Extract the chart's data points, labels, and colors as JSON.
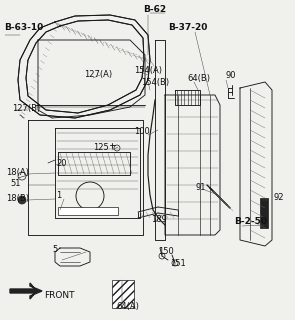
{
  "bg_color": "#f0f0ec",
  "line_color": "#1a1a1a",
  "lw": 0.65,
  "labels": {
    "B-62": [
      143,
      10,
      true
    ],
    "B-63-10": [
      4,
      28,
      true
    ],
    "B-37-20": [
      168,
      28,
      true
    ],
    "B-2-50": [
      234,
      222,
      true
    ],
    "127(A)": [
      84,
      75,
      false
    ],
    "127(B)": [
      12,
      108,
      false
    ],
    "154(A)": [
      134,
      70,
      false
    ],
    "154(B)": [
      141,
      82,
      false
    ],
    "64(B)": [
      187,
      78,
      false
    ],
    "90": [
      225,
      76,
      false
    ],
    "100": [
      134,
      132,
      false
    ],
    "125": [
      93,
      148,
      false
    ],
    "18(A)": [
      6,
      173,
      false
    ],
    "20": [
      56,
      163,
      false
    ],
    "51": [
      10,
      184,
      false
    ],
    "18(B)": [
      6,
      198,
      false
    ],
    "1": [
      56,
      196,
      false
    ],
    "91": [
      196,
      188,
      false
    ],
    "92": [
      274,
      198,
      false
    ],
    "189": [
      151,
      220,
      false
    ],
    "5": [
      52,
      250,
      false
    ],
    "150": [
      158,
      252,
      false
    ],
    "151": [
      170,
      263,
      false
    ],
    "64(A)": [
      116,
      306,
      false
    ],
    "FRONT": [
      22,
      295,
      false
    ]
  },
  "font_size": 6.0,
  "bold_font_size": 6.5
}
